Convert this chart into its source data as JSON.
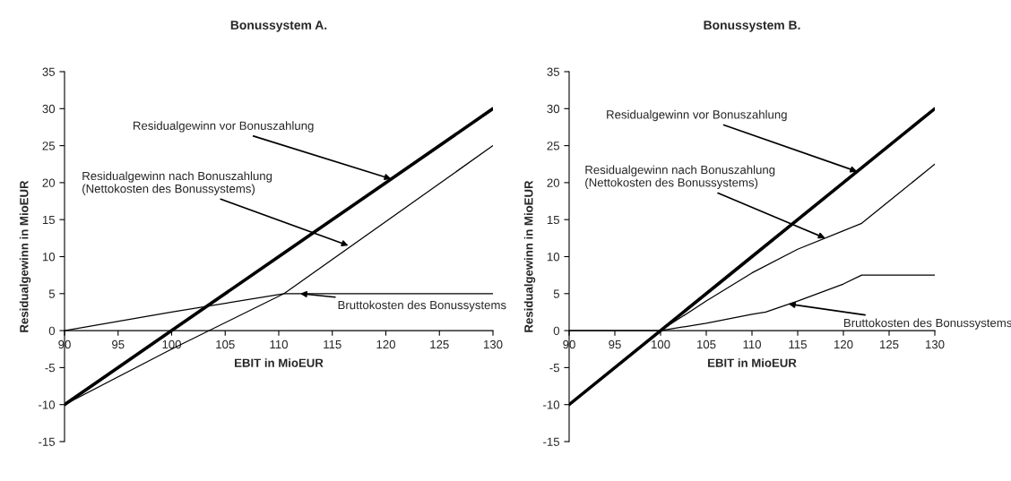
{
  "chart_data": [
    {
      "type": "line",
      "title": "Bonussystem A.",
      "xlabel": "EBIT in MioEUR",
      "ylabel": "Residualgewinn in MioEUR",
      "xlim": [
        90,
        130
      ],
      "xticks": [
        90,
        95,
        100,
        105,
        110,
        115,
        120,
        125,
        130
      ],
      "ylim": [
        -15,
        35
      ],
      "yticks": [
        -15,
        -10,
        -5,
        0,
        5,
        10,
        15,
        20,
        25,
        30,
        35
      ],
      "grid": false,
      "legend": false,
      "marker": "none",
      "line_style": "solid",
      "series": [
        {
          "color": "#000000",
          "x": [
            90,
            100,
            110,
            120,
            130
          ],
          "values": [
            -10,
            0,
            10,
            20,
            30
          ]
        },
        {
          "color": "#000000",
          "x": [
            90,
            100,
            110.5,
            130
          ],
          "values": [
            -10,
            -2.5,
            5,
            25
          ]
        },
        {
          "color": "#000000",
          "x": [
            90,
            100,
            110.5,
            130
          ],
          "values": [
            0,
            2.5,
            5,
            5
          ]
        }
      ],
      "annotations": [
        {
          "text": "Residualgewinn vor Bonuszahlung",
          "x": 120.5,
          "y": 20.5
        },
        {
          "text": "Residualgewinn nach Bonuszahlung\n(Nettokosten des Bonussystems)",
          "x": 116.5,
          "y": 11.5
        },
        {
          "text": "Bruttokosten des Bonussystems",
          "x": 112,
          "y": 5
        }
      ]
    },
    {
      "type": "line",
      "title": "Bonussystem B.",
      "xlabel": "EBIT in MioEUR",
      "ylabel": "Residualgewinn in MioEUR",
      "xlim": [
        90,
        130
      ],
      "xticks": [
        90,
        95,
        100,
        105,
        110,
        115,
        120,
        125,
        130
      ],
      "ylim": [
        -15,
        35
      ],
      "yticks": [
        -15,
        -10,
        -5,
        0,
        5,
        10,
        15,
        20,
        25,
        30,
        35
      ],
      "grid": false,
      "legend": false,
      "marker": "none",
      "line_style": "solid",
      "series": [
        {
          "color": "#000000",
          "x": [
            90,
            100,
            110,
            120,
            130
          ],
          "values": [
            -10,
            0,
            10,
            20,
            30
          ]
        },
        {
          "color": "#000000",
          "x": [
            90,
            100,
            105,
            110,
            115,
            120,
            122,
            125,
            130
          ],
          "values": [
            -10,
            0,
            4,
            7.8,
            11,
            13.5,
            14.5,
            17.5,
            22.5
          ]
        },
        {
          "color": "#000000",
          "x": [
            90,
            100,
            105,
            110,
            111.5,
            115,
            120,
            122,
            130
          ],
          "values": [
            0,
            0,
            1,
            2.2,
            2.5,
            4,
            6.3,
            7.5,
            7.5
          ]
        }
      ],
      "annotations": [
        {
          "text": "Residualgewinn vor Bonuszahlung",
          "x": 121.5,
          "y": 21.5
        },
        {
          "text": "Residualgewinn nach Bonuszahlung\n(Nettokosten des Bonussystems)",
          "x": 118,
          "y": 12.5
        },
        {
          "text": "Bruttokosten des Bonussystems",
          "x": 114,
          "y": 3.6
        }
      ]
    }
  ]
}
